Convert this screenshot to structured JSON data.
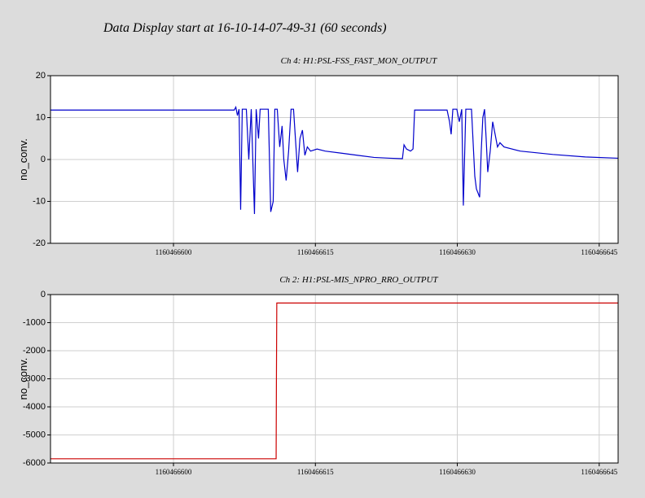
{
  "title": "Data Display start at 16-10-14-07-49-31 (60 seconds)",
  "chart_data": [
    {
      "type": "line",
      "title": "Ch 4: H1:PSL-FSS_FAST_MON_OUTPUT",
      "y_label": "no_conv.",
      "x": [
        1160466587.0,
        1160466606.42,
        1160466606.59,
        1160466606.76,
        1160466606.93,
        1160466607.1,
        1160466607.27,
        1160466607.7,
        1160466607.96,
        1160466608.22,
        1160466608.56,
        1160466608.74,
        1160466608.99,
        1160466609.16,
        1160466610.02,
        1160466610.28,
        1160466610.54,
        1160466610.71,
        1160466610.97,
        1160466611.23,
        1160466611.48,
        1160466611.66,
        1160466611.91,
        1160466612.17,
        1160466612.43,
        1160466612.69,
        1160466612.86,
        1160466613.12,
        1160466613.37,
        1160466613.63,
        1160466613.89,
        1160466614.15,
        1160466614.49,
        1160466615.18,
        1160466616.04,
        1160466617.76,
        1160466619.47,
        1160466621.19,
        1160466622.91,
        1160466624.2,
        1160466624.37,
        1160466624.63,
        1160466625.06,
        1160466625.32,
        1160466625.49,
        1160466628.92,
        1160466629.18,
        1160466629.35,
        1160466629.53,
        1160466629.95,
        1160466630.21,
        1160466630.47,
        1160466630.64,
        1160466630.9,
        1160466631.5,
        1160466631.85,
        1160466632.02,
        1160466632.19,
        1160466632.36,
        1160466632.53,
        1160466632.7,
        1160466632.88,
        1160466633.05,
        1160466633.22,
        1160466633.48,
        1160466633.74,
        1160466634.0,
        1160466634.25,
        1160466634.51,
        1160466634.94,
        1160466636.66,
        1160466640.09,
        1160466643.53,
        1160466647.0
      ],
      "series": [
        {
          "color": "#0000cc",
          "values": [
            11.8,
            11.8,
            12.5,
            10.5,
            12,
            -12,
            12,
            12,
            0,
            12,
            -13,
            12,
            5,
            12,
            12,
            -12.5,
            -10,
            12,
            12,
            3,
            8,
            0,
            -5,
            2,
            12,
            12,
            6,
            -3,
            5,
            7,
            1,
            3,
            2,
            2.5,
            2,
            1.5,
            1,
            0.5,
            0.3,
            0.2,
            3.5,
            2.5,
            2,
            2.5,
            11.8,
            11.8,
            9,
            6,
            12,
            12,
            9,
            12,
            -11,
            12,
            12,
            -4,
            -7,
            -8,
            -9,
            2,
            10,
            12,
            5,
            -3,
            2,
            9,
            6,
            3,
            4,
            3,
            2,
            1.2,
            0.6,
            0.3
          ]
        }
      ],
      "xlim": [
        1160466587,
        1160466647
      ],
      "xticks": [
        1160466600,
        1160466615,
        1160466630,
        1160466645
      ],
      "ylim": [
        -20,
        20
      ],
      "yticks": [
        20,
        10,
        0,
        -10,
        -20
      ],
      "grid": true
    },
    {
      "type": "line",
      "title": "Ch 2: H1:PSL-MIS_NPRO_RRO_OUTPUT",
      "y_label": "no_conv.",
      "x": [
        1160466587.0,
        1160466610.85,
        1160466610.88,
        1160466610.92,
        1160466647.0
      ],
      "series": [
        {
          "color": "#cc0000",
          "values": [
            -5850,
            -5850,
            -3100,
            -300,
            -300
          ]
        }
      ],
      "xlim": [
        1160466587,
        1160466647
      ],
      "xticks": [
        1160466600,
        1160466615,
        1160466630,
        1160466645
      ],
      "ylim": [
        -6000,
        0
      ],
      "yticks": [
        0,
        -1000,
        -2000,
        -3000,
        -4000,
        -5000,
        -6000
      ],
      "grid": true
    }
  ]
}
